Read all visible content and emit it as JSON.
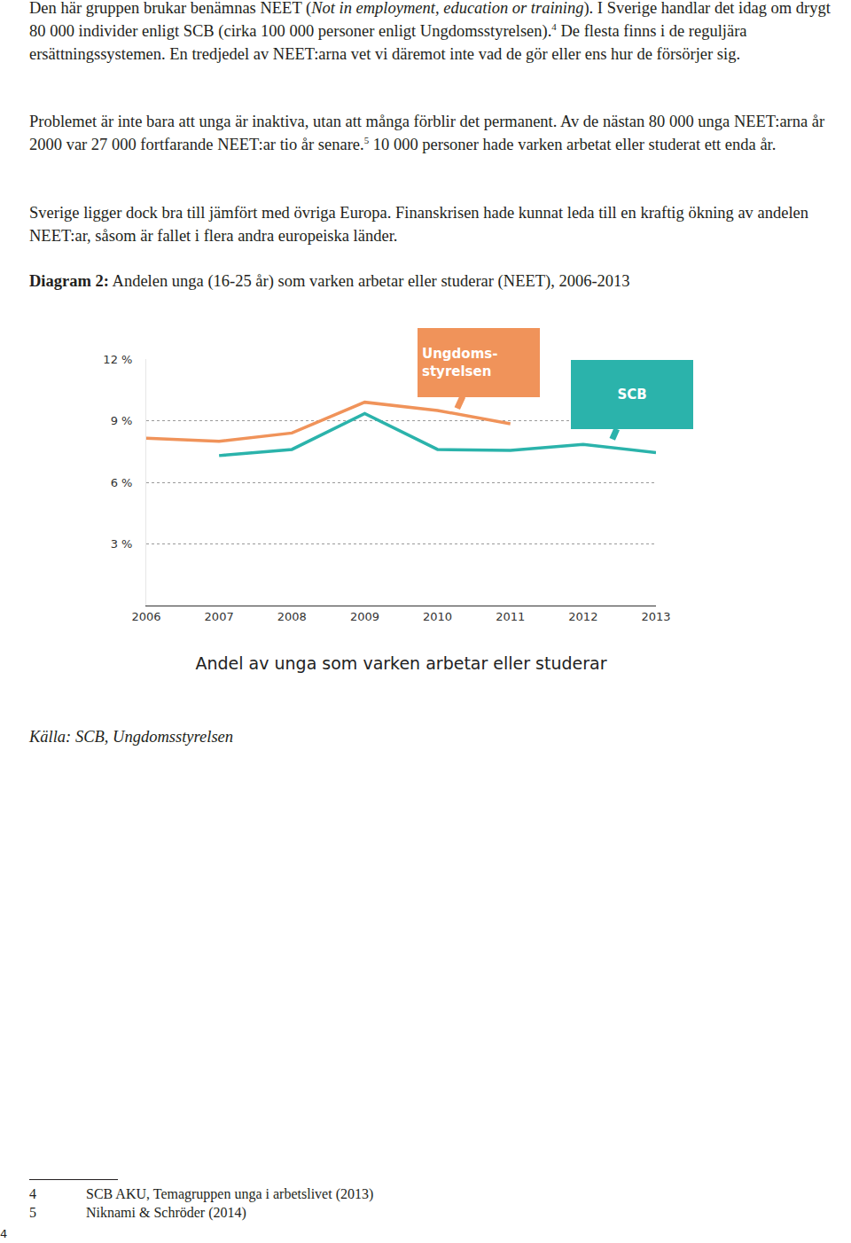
{
  "document": {
    "paragraphs": [
      [
        {
          "text": "Den här gruppen brukar benämnas NEET ("
        },
        {
          "text": "Not in employment, education or training",
          "style": "italic"
        },
        {
          "text": "). I Sverige handlar det idag om drygt 80 000 individer enligt SCB (cirka 100 000 personer enligt Ungdomsstyrelsen)."
        },
        {
          "text": "4",
          "style": "sup"
        },
        {
          "text": " De flesta finns i de reguljära ersättningssystemen. En tredjedel av NEET:arna vet vi däremot inte vad de gör eller ens hur de försörjer sig."
        }
      ],
      [
        {
          "text": "Problemet är inte bara att unga är inaktiva, utan att många förblir det permanent. Av de nästan 80 000 unga NEET:arna år 2000 var 27 000 fortfarande NEET:ar tio år senare."
        },
        {
          "text": "5",
          "style": "sup"
        },
        {
          "text": " 10 000 personer hade varken arbetat eller studerat ett enda år."
        }
      ],
      [
        {
          "text": "Sverige ligger dock bra till jämfört med övriga Europa. Finanskrisen hade kunnat leda till en kraftig ökning av andelen NEET:ar, såsom är fallet i flera andra europeiska länder."
        }
      ]
    ],
    "source": {
      "text": "Källa: SCB, Ungdomsstyrelsen",
      "style": "italic"
    },
    "footnotes": [
      {
        "number": "4",
        "text": "SCB AKU, Temagruppen unga i arbetslivet (2013)"
      },
      {
        "number": "5",
        "text": "Niknami & Schröder (2014)"
      }
    ],
    "page_number": "4"
  },
  "chart_data": {
    "type": "line",
    "title_label": "Diagram 2:",
    "title": "Andelen unga (16-25 år) som varken arbetar eller studerar (NEET), 2006-2013",
    "x_label": "Andel av unga som varken arbetar eller studerar",
    "x": [
      2006,
      2007,
      2008,
      2009,
      2010,
      2011,
      2012,
      2013
    ],
    "series": [
      {
        "name": "Ungdoms-styrelsen",
        "color": "#f0935a",
        "values": [
          8.15,
          8.0,
          8.4,
          9.9,
          9.5,
          8.85,
          null,
          null
        ]
      },
      {
        "name": "SCB",
        "color": "#2bb3ab",
        "values": [
          null,
          7.3,
          7.6,
          9.35,
          7.6,
          7.55,
          7.85,
          7.45
        ]
      }
    ],
    "xlim": [
      2006,
      2013
    ],
    "xticks": [
      2006,
      2007,
      2008,
      2009,
      2010,
      2011,
      2012,
      2013
    ],
    "ylim": [
      0,
      12
    ],
    "yticks": [
      {
        "value": 3,
        "label": "3 %"
      },
      {
        "value": 6,
        "label": "6 %"
      },
      {
        "value": 9,
        "label": "9 %"
      },
      {
        "value": 12,
        "label": "12 %"
      }
    ],
    "grid": true
  }
}
